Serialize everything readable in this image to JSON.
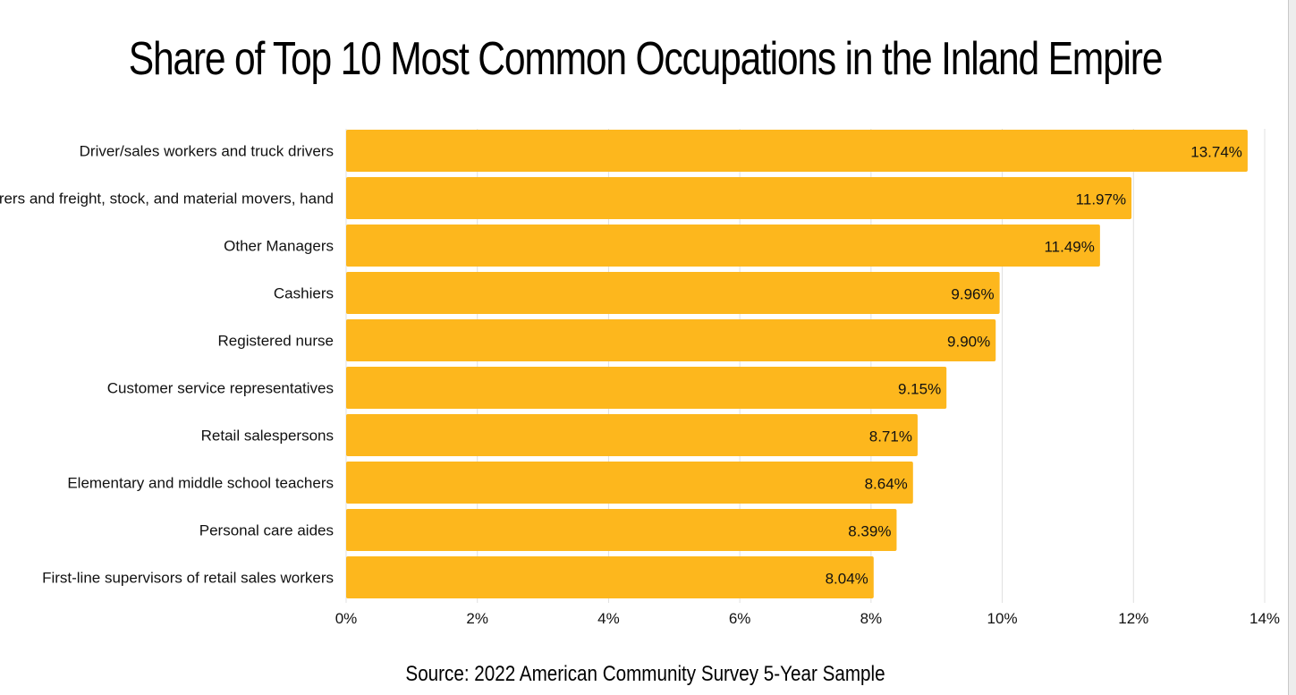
{
  "chart_data": {
    "type": "bar",
    "orientation": "horizontal",
    "title": "Share of Top 10 Most Common Occupations in the Inland Empire",
    "source": "Source: 2022 American Community Survey 5-Year Sample",
    "xlabel": "",
    "ylabel": "",
    "xlim": [
      0,
      14
    ],
    "grid": true,
    "bar_color": "#fdb71d",
    "gridline_color": "#e0e0e0",
    "ticks": [
      "0%",
      "2%",
      "4%",
      "6%",
      "8%",
      "10%",
      "12%",
      "14%"
    ],
    "tick_values": [
      0,
      2,
      4,
      6,
      8,
      10,
      12,
      14
    ],
    "categories": [
      "Driver/sales workers and truck drivers",
      "Laborers and freight, stock, and material movers, hand",
      "Other Managers",
      "Cashiers",
      "Registered nurse",
      "Customer service representatives",
      "Retail salespersons",
      "Elementary and middle school teachers",
      "Personal care aides",
      "First-line supervisors of retail sales workers"
    ],
    "values": [
      13.74,
      11.97,
      11.49,
      9.96,
      9.9,
      9.15,
      8.71,
      8.64,
      8.39,
      8.04
    ],
    "value_labels": [
      "13.74%",
      "11.97%",
      "11.49%",
      "9.96%",
      "9.90%",
      "9.15%",
      "8.71%",
      "8.64%",
      "8.39%",
      "8.04%"
    ]
  }
}
